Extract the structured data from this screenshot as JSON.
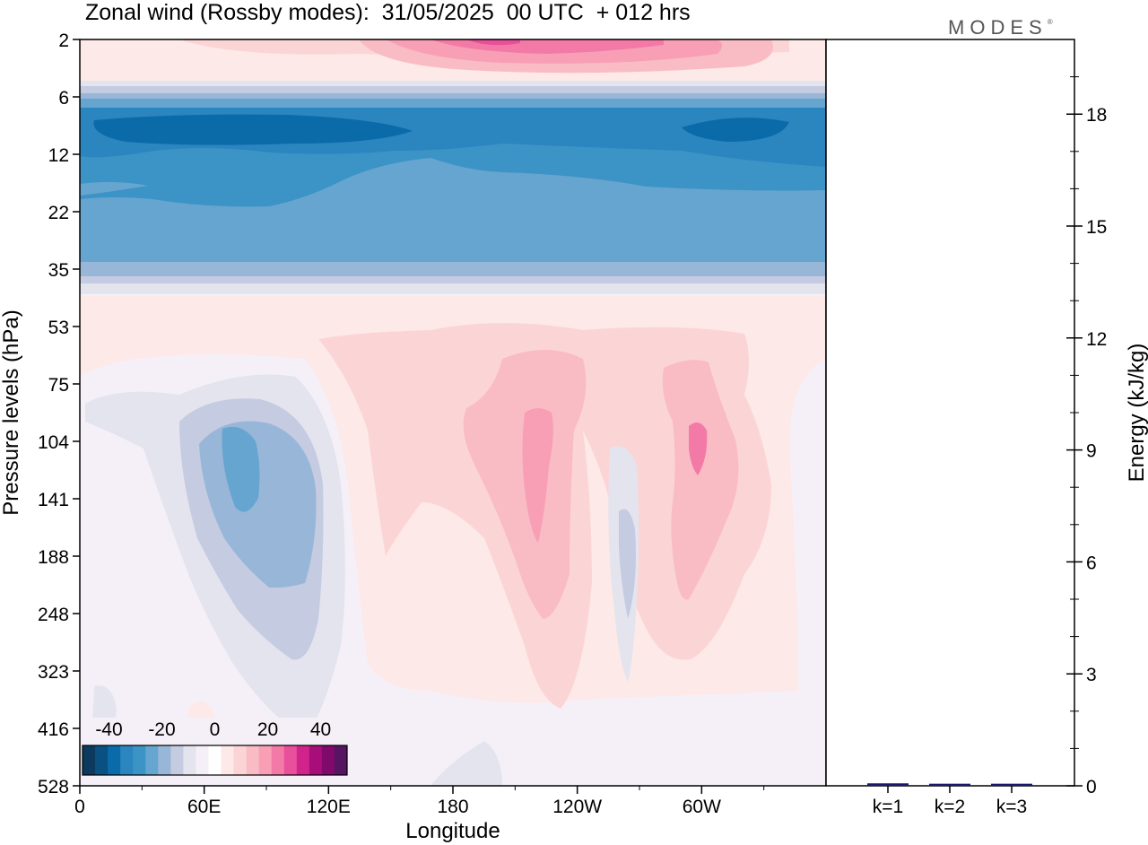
{
  "header": {
    "title": "Zonal wind (Rossby modes):  31/05/2025  00 UTC  + 012 hrs",
    "brand": "MODES",
    "brand_mark": "®"
  },
  "chart_data": [
    {
      "type": "heatmap",
      "title": "Zonal wind (Rossby modes):  31/05/2025  00 UTC  + 012 hrs",
      "xlabel": "Longitude",
      "ylabel": "Pressure levels (hPa)",
      "x_ticks": [
        "0",
        "60E",
        "120E",
        "180",
        "120W",
        "60W"
      ],
      "x_tick_values": [
        0,
        60,
        120,
        180,
        240,
        300
      ],
      "xlim": [
        0,
        360
      ],
      "y_ticks": [
        "2",
        "6",
        "12",
        "22",
        "35",
        "53",
        "75",
        "104",
        "141",
        "188",
        "248",
        "323",
        "416",
        "528"
      ],
      "y_scale": "level index (top 2 hPa to bottom 528 hPa)",
      "colorbar": {
        "tick_labels": [
          "-40",
          "-20",
          "0",
          "20",
          "40"
        ],
        "tick_values": [
          -40,
          -20,
          0,
          20,
          40
        ],
        "levels": [
          -50,
          -45,
          -40,
          -35,
          -30,
          -25,
          -20,
          -15,
          -10,
          -5,
          0,
          5,
          10,
          15,
          20,
          25,
          30,
          35,
          40,
          45,
          50
        ],
        "colors": [
          "#0b3a5e",
          "#0a5182",
          "#0b6aa8",
          "#2b85bf",
          "#3c93c6",
          "#65a5cf",
          "#98b6d8",
          "#c5cbe1",
          "#e4e4ef",
          "#f5f0f7",
          "#ffffff",
          "#fde9e8",
          "#fbd5d5",
          "#f9bcc4",
          "#f89fb6",
          "#f37aa6",
          "#e9509b",
          "#d0248a",
          "#a80e7a",
          "#7f0a6b",
          "#561561"
        ]
      },
      "features": [
        {
          "description_type": "negative band",
          "level_range": [
            "6",
            "35"
          ],
          "min_value": -30
        },
        {
          "description_type": "positive band",
          "level_range": [
            "2",
            "6"
          ],
          "max_value": 25
        },
        {
          "description_type": "negative cell",
          "center_lon": 85,
          "center_level": "141",
          "min_value": -20
        },
        {
          "description_type": "positive cell",
          "center_lon": 220,
          "center_level": "141",
          "max_value": 20
        },
        {
          "description_type": "positive cell",
          "center_lon": 293,
          "center_level": "104",
          "max_value": 20
        }
      ]
    },
    {
      "type": "bar",
      "ylabel": "Energy (kJ/kg)",
      "categories": [
        "k=1",
        "k=2",
        "k=3"
      ],
      "values": [
        0.03,
        0.02,
        0.02
      ],
      "ylim": [
        0,
        20
      ],
      "y_ticks": [
        "0",
        "3",
        "6",
        "9",
        "12",
        "15",
        "18"
      ],
      "y_tick_values": [
        0,
        3,
        6,
        9,
        12,
        15,
        18
      ],
      "bar_color": "#1a1a6e"
    }
  ]
}
